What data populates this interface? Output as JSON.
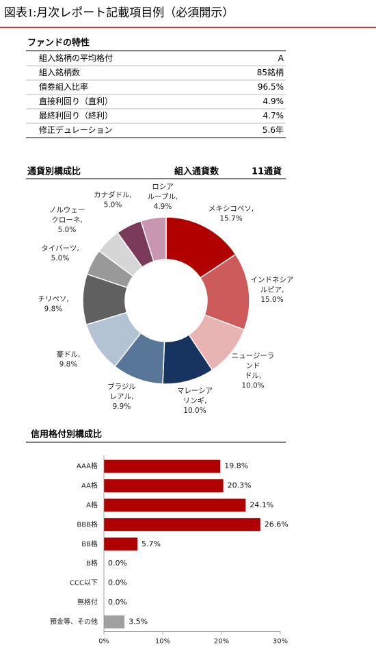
{
  "title": "図表1:月次レポート記載項目例（必須開示）",
  "fund_table": {
    "title": "ファンドの特性",
    "rows": [
      [
        "組入銘柄の平均格付",
        "A"
      ],
      [
        "組入銘柄数",
        "85銘柄"
      ],
      [
        "債券組入比率",
        "96.5%"
      ],
      [
        "直接利回り（直利）",
        "4.9%"
      ],
      [
        "最終利回り（終利）",
        "4.7%"
      ],
      [
        "修正デュレーション",
        "5.6年"
      ]
    ]
  },
  "chart_data": [
    {
      "type": "pie",
      "donut": true,
      "title": "通貨別構成比",
      "count_label": "組入通貨数",
      "count_value": "11通貨",
      "categories": [
        "メキシコペソ,",
        "インドネシアルピア,",
        "ニュージーランドドル,",
        "マレーシアリンギ,",
        "ブラジルレアル,",
        "豪ドル,",
        "チリペソ,",
        "タイバーツ,",
        "ノルウェークローネ,",
        "カナダドル,",
        "ロシアルーブル,"
      ],
      "values": [
        15.7,
        15.0,
        10.0,
        10.0,
        9.9,
        9.8,
        9.8,
        5.0,
        5.0,
        5.0,
        4.9
      ],
      "value_labels": [
        "15.7%",
        "15.0%",
        "10.0%",
        "10.0%",
        "9.9%",
        "9.8%",
        "9.8%",
        "5.0%",
        "5.0%",
        "5.0%",
        "4.9%"
      ],
      "colors": [
        "#b00000",
        "#cd5b5b",
        "#e8b3b3",
        "#17335f",
        "#587698",
        "#b3c3d4",
        "#606060",
        "#999999",
        "#d6d6d6",
        "#7b3a5a",
        "#c896b0"
      ]
    },
    {
      "type": "bar",
      "orientation": "horizontal",
      "title": "信用格付別構成比",
      "categories": [
        "AAA格",
        "AA格",
        "A格",
        "BBB格",
        "BB格",
        "B格",
        "CCC以下",
        "無格付",
        "預金等、その他"
      ],
      "values": [
        19.8,
        20.3,
        24.1,
        26.6,
        5.7,
        0.0,
        0.0,
        0.0,
        3.5
      ],
      "value_labels": [
        "19.8%",
        "20.3%",
        "24.1%",
        "26.6%",
        "5.7%",
        "0.0%",
        "0.0%",
        "0.0%",
        "3.5%"
      ],
      "colors": [
        "#b00000",
        "#b00000",
        "#b00000",
        "#b00000",
        "#b00000",
        "#b00000",
        "#b00000",
        "#b00000",
        "#a0a0a0"
      ],
      "xlim": [
        0,
        30
      ],
      "xticks": [
        {
          "value": 0,
          "label": "0%"
        },
        {
          "value": 10,
          "label": "10%"
        },
        {
          "value": 20,
          "label": "20%"
        },
        {
          "value": 30,
          "label": "30%"
        }
      ]
    }
  ]
}
